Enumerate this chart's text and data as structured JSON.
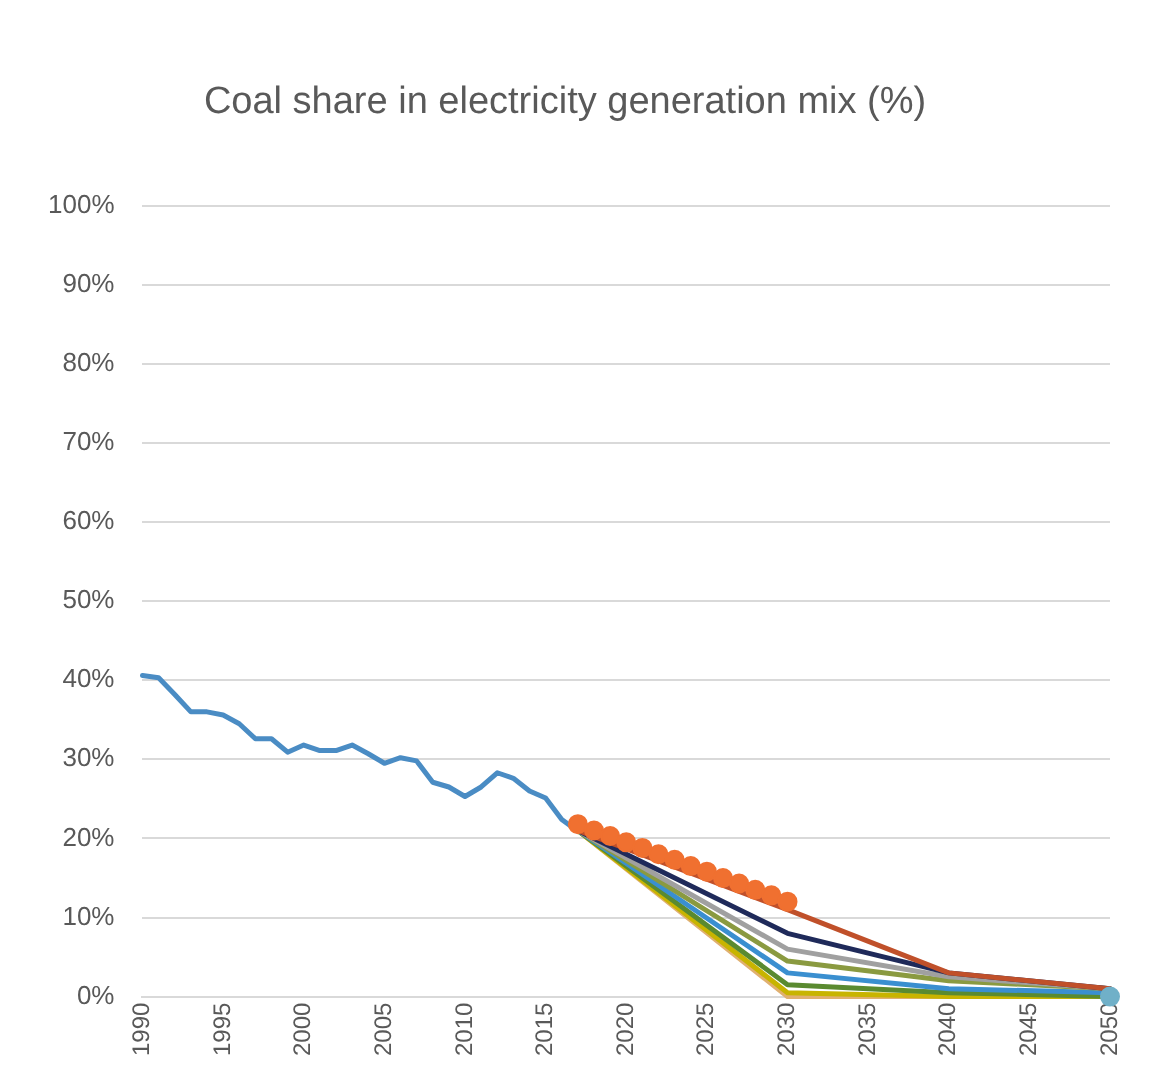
{
  "chart_data": {
    "type": "line",
    "title": "Coal share in electricity generation mix (%)",
    "xlim": [
      1990,
      2050
    ],
    "xticks": [
      1990,
      1995,
      2000,
      2005,
      2010,
      2015,
      2020,
      2025,
      2030,
      2035,
      2040,
      2045,
      2050
    ],
    "ylim": [
      0,
      100
    ],
    "yticks": [
      {
        "value": 0,
        "label": "0%"
      },
      {
        "value": 10,
        "label": "10%"
      },
      {
        "value": 20,
        "label": "20%"
      },
      {
        "value": 30,
        "label": "30%"
      },
      {
        "value": 40,
        "label": "40%"
      },
      {
        "value": 50,
        "label": "50%"
      },
      {
        "value": 60,
        "label": "60%"
      },
      {
        "value": 70,
        "label": "70%"
      },
      {
        "value": 80,
        "label": "80%"
      },
      {
        "value": 90,
        "label": "90%"
      },
      {
        "value": 100,
        "label": "100%"
      }
    ],
    "grid": "y",
    "legend": false,
    "series": [
      {
        "color": "#e0b070",
        "x": [
          2017,
          2030,
          2040,
          2050
        ],
        "values": [
          21,
          0,
          0,
          0
        ]
      },
      {
        "color": "#c8b400",
        "x": [
          2017,
          2030,
          2040,
          2050
        ],
        "values": [
          21,
          0.5,
          0,
          0
        ]
      },
      {
        "color": "#5a8a30",
        "x": [
          2017,
          2030,
          2040,
          2050
        ],
        "values": [
          21,
          1.5,
          0.5,
          0
        ]
      },
      {
        "color": "#3a8fd0",
        "x": [
          2017,
          2030,
          2040,
          2050
        ],
        "values": [
          21,
          3,
          1,
          0.5
        ]
      },
      {
        "color": "#8a9a40",
        "x": [
          2017,
          2030,
          2040,
          2050
        ],
        "values": [
          21,
          4.5,
          2,
          1
        ]
      },
      {
        "color": "#a0a0a0",
        "x": [
          2017,
          2030,
          2040,
          2050
        ],
        "values": [
          21,
          6,
          2.5,
          1
        ]
      },
      {
        "color": "#1f2a5a",
        "x": [
          2017,
          2030,
          2040,
          2050
        ],
        "values": [
          21,
          8,
          3,
          1
        ]
      },
      {
        "color": "#c0502a",
        "x": [
          2017,
          2030,
          2040,
          2050
        ],
        "values": [
          21,
          11,
          3,
          1
        ]
      },
      {
        "color": "#4a8cc4",
        "x": [
          1990,
          1991,
          1992,
          1993,
          1994,
          1995,
          1996,
          1997,
          1998,
          1999,
          2000,
          2001,
          2002,
          2003,
          2004,
          2005,
          2006,
          2007,
          2008,
          2009,
          2010,
          2011,
          2012,
          2013,
          2014,
          2015,
          2016,
          2017
        ],
        "values": [
          40.6,
          40.3,
          38.2,
          36,
          36,
          35.6,
          34.5,
          32.6,
          32.6,
          30.9,
          31.8,
          31.1,
          31.1,
          31.8,
          30.7,
          29.5,
          30.2,
          29.8,
          27.1,
          26.5,
          25.3,
          26.5,
          28.3,
          27.6,
          26,
          25.1,
          22.4,
          20.9
        ]
      },
      {
        "type": "scatter",
        "color": "#f07030",
        "marker": "circle",
        "x": [
          2017,
          2018,
          2019,
          2020,
          2021,
          2022,
          2023,
          2024,
          2025,
          2026,
          2027,
          2028,
          2029,
          2030
        ],
        "values": [
          21.8,
          21,
          20.3,
          19.5,
          18.8,
          18,
          17.3,
          16.5,
          15.8,
          15,
          14.3,
          13.5,
          12.8,
          12
        ]
      },
      {
        "type": "scatter",
        "color": "#70b0c8",
        "marker": "circle",
        "x": [
          2050
        ],
        "values": [
          0
        ]
      }
    ]
  }
}
